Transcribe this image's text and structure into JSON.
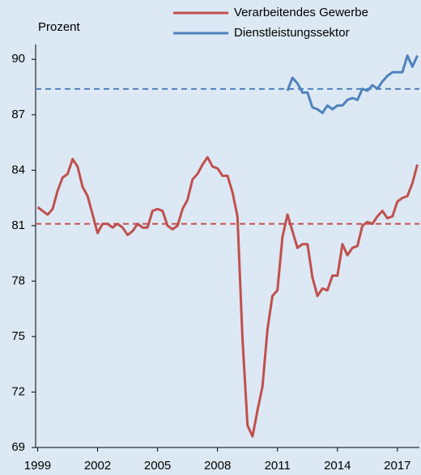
{
  "chart_data": {
    "type": "line",
    "y_label": "Prozent",
    "xlim": [
      1998.9,
      2018.1
    ],
    "ylim": [
      69,
      90.8
    ],
    "xticks": [
      1999,
      2002,
      2005,
      2008,
      2011,
      2014,
      2017
    ],
    "yticks": [
      69,
      72,
      75,
      78,
      81,
      84,
      87,
      90
    ],
    "legend": "top-right",
    "series": [
      {
        "name": "Verarbeitendes Gewerbe",
        "color": "#c0504d",
        "x": [
          1999,
          1999.25,
          1999.5,
          1999.75,
          2000,
          2000.25,
          2000.5,
          2000.75,
          2001,
          2001.25,
          2001.5,
          2001.75,
          2002,
          2002.25,
          2002.5,
          2002.75,
          2003,
          2003.25,
          2003.5,
          2003.75,
          2004,
          2004.25,
          2004.5,
          2004.75,
          2005,
          2005.25,
          2005.5,
          2005.75,
          2006,
          2006.25,
          2006.5,
          2006.75,
          2007,
          2007.25,
          2007.5,
          2007.75,
          2008,
          2008.25,
          2008.5,
          2008.75,
          2009,
          2009.25,
          2009.5,
          2009.75,
          2010,
          2010.25,
          2010.5,
          2010.75,
          2011,
          2011.25,
          2011.5,
          2011.75,
          2012,
          2012.25,
          2012.5,
          2012.75,
          2013,
          2013.25,
          2013.5,
          2013.75,
          2014,
          2014.25,
          2014.5,
          2014.75,
          2015,
          2015.25,
          2015.5,
          2015.75,
          2016,
          2016.25,
          2016.5,
          2016.75,
          2017,
          2017.25,
          2017.5,
          2017.75,
          2018
        ],
        "values": [
          82.0,
          81.8,
          81.6,
          81.9,
          82.9,
          83.6,
          83.8,
          84.6,
          84.2,
          83.1,
          82.6,
          81.6,
          80.6,
          81.1,
          81.1,
          80.9,
          81.1,
          80.9,
          80.5,
          80.7,
          81.1,
          80.9,
          80.9,
          81.8,
          81.9,
          81.8,
          81.0,
          80.8,
          81.0,
          81.9,
          82.4,
          83.5,
          83.8,
          84.3,
          84.7,
          84.2,
          84.1,
          83.7,
          83.7,
          82.8,
          81.5,
          74.9,
          70.2,
          69.6,
          71.0,
          72.3,
          75.4,
          77.2,
          77.5,
          80.4,
          81.6,
          80.7,
          79.8,
          80.0,
          80.0,
          78.2,
          77.2,
          77.6,
          77.5,
          78.3,
          78.3,
          80.0,
          79.4,
          79.8,
          79.9,
          81.0,
          81.2,
          81.1,
          81.5,
          81.8,
          81.4,
          81.5,
          82.3,
          82.5,
          82.6,
          83.3,
          84.3
        ]
      },
      {
        "name": "Dienstleistungssektor",
        "color": "#4f81bd",
        "x": [
          2011.5,
          2011.75,
          2012,
          2012.25,
          2012.5,
          2012.75,
          2013,
          2013.25,
          2013.5,
          2013.75,
          2014,
          2014.25,
          2014.5,
          2014.75,
          2015,
          2015.25,
          2015.5,
          2015.75,
          2016,
          2016.25,
          2016.5,
          2016.75,
          2017,
          2017.25,
          2017.5,
          2017.75,
          2018
        ],
        "values": [
          88.3,
          89.0,
          88.7,
          88.2,
          88.2,
          87.4,
          87.3,
          87.1,
          87.5,
          87.3,
          87.5,
          87.5,
          87.8,
          87.9,
          87.8,
          88.4,
          88.3,
          88.6,
          88.4,
          88.8,
          89.1,
          89.3,
          89.3,
          89.3,
          90.2,
          89.6,
          90.2
        ]
      }
    ],
    "reference_lines": [
      {
        "value": 81.1,
        "color": "#c0504d"
      },
      {
        "value": 88.4,
        "color": "#4f81bd"
      }
    ]
  }
}
